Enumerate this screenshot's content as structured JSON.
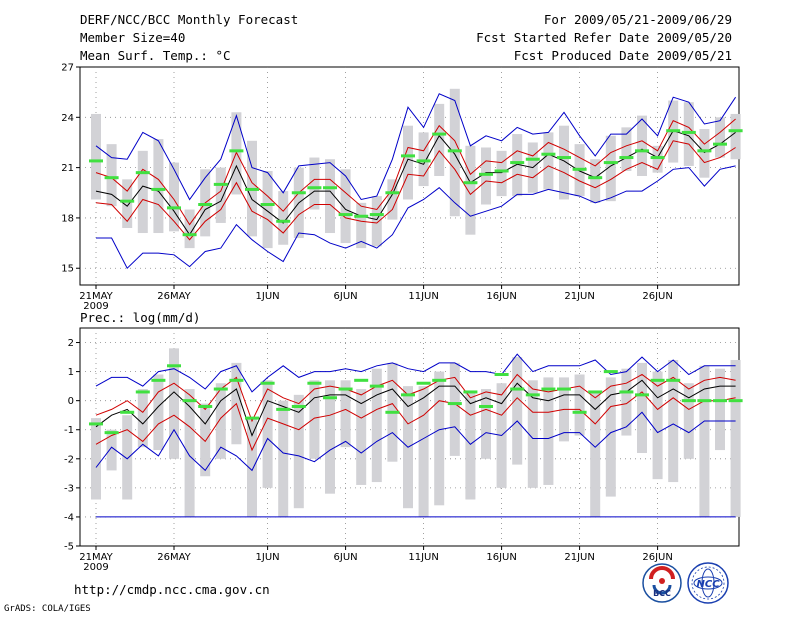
{
  "header": {
    "title": "DERF/NCC/BCC Monthly Forecast",
    "member_size": "Member Size=40",
    "variable": "Mean Surf. Temp.: °C",
    "period": "For 2009/05/21-2009/06/29",
    "started": "Fcst Started Refer Date 2009/05/20",
    "produced": "Fcst Produced Date 2009/05/21"
  },
  "footer": {
    "url": "http://cmdp.ncc.cma.gov.cn",
    "credit": "GrADS: COLA/IGES",
    "logo_left_text": "BCC",
    "logo_right_text": "NCC"
  },
  "colors": {
    "box": "#d2d2d6",
    "mean": "#000000",
    "band": "#d00000",
    "envelope": "#0000c8",
    "marker": "#40e040"
  },
  "chart_data": [
    {
      "type": "line",
      "title": "Mean Surf. Temp.: °C",
      "xlabel": "",
      "ylabel": "°C",
      "ylim": [
        14,
        27
      ],
      "yticks": [
        15,
        18,
        21,
        24,
        27
      ],
      "xticks": [
        {
          "day": 0,
          "label": "21MAY"
        },
        {
          "day": 5,
          "label": "26MAY"
        },
        {
          "day": 11,
          "label": "1JUN"
        },
        {
          "day": 16,
          "label": "6JUN"
        },
        {
          "day": 21,
          "label": "11JUN"
        },
        {
          "day": 26,
          "label": "16JUN"
        },
        {
          "day": 31,
          "label": "21JUN"
        },
        {
          "day": 36,
          "label": "26JUN"
        }
      ],
      "year_label": "2009",
      "series": [
        {
          "name": "max",
          "values": [
            22.3,
            21.6,
            21.5,
            23.1,
            22.6,
            20.9,
            19.1,
            20.4,
            21.5,
            24.1,
            21.0,
            20.7,
            19.5,
            21.1,
            21.2,
            21.3,
            20.5,
            19.1,
            19.3,
            21.5,
            24.6,
            23.4,
            25.4,
            25.0,
            22.3,
            22.9,
            22.6,
            23.4,
            23.0,
            23.1,
            24.3,
            22.9,
            21.7,
            23.0,
            23.0,
            23.9,
            22.9,
            25.2,
            24.9,
            23.6,
            23.8,
            25.2
          ]
        },
        {
          "name": "upper",
          "values": [
            20.7,
            20.4,
            19.6,
            20.9,
            20.3,
            19.1,
            17.6,
            18.9,
            19.6,
            21.9,
            20.1,
            19.3,
            18.4,
            19.5,
            20.3,
            20.3,
            19.5,
            18.7,
            18.5,
            19.7,
            22.2,
            22.0,
            23.5,
            22.6,
            20.6,
            21.4,
            21.3,
            22.0,
            21.7,
            22.5,
            22.1,
            21.6,
            21.1,
            21.9,
            22.3,
            22.6,
            22.0,
            23.8,
            23.4,
            22.4,
            23.1,
            23.9
          ]
        },
        {
          "name": "mean",
          "values": [
            19.6,
            19.4,
            18.7,
            19.9,
            19.6,
            18.4,
            17.0,
            18.5,
            19.0,
            21.1,
            19.1,
            18.4,
            17.7,
            18.9,
            19.6,
            19.6,
            18.5,
            18.1,
            17.9,
            19.4,
            21.5,
            21.2,
            22.9,
            21.8,
            20.1,
            20.7,
            20.7,
            21.2,
            21.0,
            21.8,
            21.4,
            20.8,
            20.4,
            21.1,
            21.6,
            22.1,
            21.6,
            23.2,
            22.9,
            21.9,
            22.4,
            23.1
          ]
        },
        {
          "name": "lower",
          "values": [
            18.9,
            18.8,
            17.8,
            19.1,
            18.8,
            17.8,
            16.7,
            17.8,
            18.5,
            20.1,
            18.4,
            17.9,
            17.1,
            18.2,
            18.8,
            18.8,
            18.0,
            17.8,
            17.7,
            18.5,
            20.6,
            20.5,
            22.0,
            20.9,
            19.4,
            20.2,
            20.1,
            20.6,
            20.4,
            21.1,
            20.7,
            20.2,
            19.8,
            20.3,
            20.9,
            21.3,
            20.9,
            22.6,
            22.4,
            21.3,
            21.6,
            22.2
          ]
        },
        {
          "name": "min",
          "values": [
            16.8,
            16.8,
            15.0,
            15.9,
            15.9,
            15.8,
            15.1,
            16.0,
            16.2,
            17.6,
            16.7,
            16.0,
            15.4,
            17.1,
            17.0,
            16.5,
            16.2,
            16.6,
            16.2,
            17.0,
            18.6,
            19.1,
            19.8,
            18.9,
            18.1,
            18.4,
            18.7,
            19.4,
            19.4,
            19.7,
            19.5,
            19.3,
            18.9,
            19.2,
            19.6,
            19.6,
            20.2,
            20.9,
            21.0,
            19.9,
            20.9,
            21.1
          ]
        },
        {
          "name": "box_top",
          "values": [
            24.2,
            22.4,
            20.3,
            22.0,
            22.7,
            21.3,
            18.5,
            20.9,
            21.0,
            24.3,
            22.6,
            20.8,
            19.6,
            21.0,
            21.6,
            21.5,
            20.9,
            18.9,
            19.3,
            20.3,
            23.5,
            23.1,
            24.8,
            25.7,
            22.3,
            22.2,
            22.0,
            23.0,
            22.5,
            23.1,
            23.5,
            22.4,
            21.5,
            22.9,
            23.4,
            24.1,
            22.3,
            25.0,
            24.9,
            23.3,
            24.0,
            24.2
          ]
        },
        {
          "name": "box_bottom",
          "values": [
            19.1,
            18.7,
            17.4,
            17.1,
            17.1,
            17.2,
            16.2,
            16.9,
            17.7,
            19.4,
            16.9,
            16.2,
            16.4,
            16.8,
            18.5,
            17.1,
            16.5,
            16.2,
            16.3,
            17.9,
            19.1,
            19.9,
            20.5,
            18.1,
            17.0,
            18.8,
            19.3,
            19.3,
            19.5,
            19.7,
            19.1,
            19.3,
            18.9,
            19.0,
            20.8,
            20.5,
            20.7,
            21.3,
            21.1,
            20.4,
            21.6,
            21.5
          ]
        },
        {
          "name": "marker",
          "values": [
            21.4,
            20.4,
            19.0,
            20.7,
            19.7,
            18.6,
            17.0,
            18.8,
            20.0,
            22.0,
            19.7,
            18.8,
            17.8,
            19.5,
            19.8,
            19.8,
            18.2,
            18.1,
            18.2,
            19.5,
            21.7,
            21.4,
            23.0,
            22.0,
            20.1,
            20.6,
            20.8,
            21.3,
            21.5,
            21.8,
            21.6,
            20.9,
            20.4,
            21.3,
            21.6,
            22.0,
            21.6,
            23.2,
            23.1,
            22.0,
            22.4,
            23.2
          ]
        }
      ]
    },
    {
      "type": "line",
      "title": "Prec.: log(mm/d)",
      "xlabel": "",
      "ylabel": "log(mm/d)",
      "ylim": [
        -5,
        2.5
      ],
      "yticks": [
        -5,
        -4,
        -3,
        -2,
        -1,
        0,
        1,
        2
      ],
      "xticks": [
        {
          "day": 0,
          "label": "21MAY"
        },
        {
          "day": 5,
          "label": "26MAY"
        },
        {
          "day": 11,
          "label": "1JUN"
        },
        {
          "day": 16,
          "label": "6JUN"
        },
        {
          "day": 21,
          "label": "11JUN"
        },
        {
          "day": 26,
          "label": "16JUN"
        },
        {
          "day": 31,
          "label": "21JUN"
        },
        {
          "day": 36,
          "label": "26JUN"
        }
      ],
      "year_label": "2009",
      "series": [
        {
          "name": "max",
          "values": [
            0.5,
            0.8,
            0.8,
            0.5,
            1.0,
            1.1,
            0.8,
            0.4,
            1.0,
            1.2,
            0.3,
            0.8,
            1.2,
            0.8,
            1.0,
            1.0,
            1.1,
            1.0,
            1.2,
            1.3,
            1.1,
            1.0,
            1.3,
            1.3,
            1.0,
            1.0,
            0.9,
            1.6,
            1.0,
            1.2,
            1.2,
            1.2,
            1.4,
            0.9,
            1.0,
            1.5,
            1.0,
            1.4,
            0.9,
            1.2,
            1.2,
            1.2
          ]
        },
        {
          "name": "upper",
          "values": [
            -0.5,
            -0.3,
            0.0,
            -0.4,
            0.3,
            0.6,
            0.2,
            -0.3,
            0.4,
            0.8,
            -0.7,
            0.4,
            0.1,
            -0.1,
            0.4,
            0.5,
            0.4,
            0.2,
            0.5,
            0.7,
            0.2,
            0.4,
            0.7,
            0.8,
            0.1,
            0.3,
            0.2,
            0.9,
            0.4,
            0.3,
            0.4,
            0.5,
            0.1,
            0.5,
            0.6,
            0.9,
            0.5,
            0.8,
            0.4,
            0.7,
            0.8,
            0.7
          ]
        },
        {
          "name": "mean",
          "values": [
            -0.9,
            -0.5,
            -0.3,
            -0.8,
            -0.2,
            0.3,
            -0.2,
            -0.8,
            0.0,
            0.4,
            -1.2,
            0.0,
            -0.2,
            -0.4,
            0.1,
            0.2,
            0.2,
            -0.1,
            0.2,
            0.4,
            -0.2,
            0.1,
            0.5,
            0.5,
            -0.1,
            0.1,
            -0.1,
            0.6,
            0.1,
            0.0,
            0.2,
            0.2,
            -0.3,
            0.2,
            0.3,
            0.7,
            0.1,
            0.4,
            0.1,
            0.4,
            0.5,
            0.5
          ]
        },
        {
          "name": "lower",
          "values": [
            -1.5,
            -1.2,
            -1.0,
            -1.4,
            -0.8,
            -0.5,
            -0.9,
            -1.4,
            -0.6,
            -0.1,
            -1.7,
            -0.6,
            -0.8,
            -1.0,
            -0.6,
            -0.5,
            -0.3,
            -0.6,
            -0.3,
            -0.1,
            -0.8,
            -0.5,
            0.0,
            -0.1,
            -0.5,
            -0.3,
            -0.5,
            0.1,
            -0.4,
            -0.4,
            -0.3,
            -0.3,
            -0.8,
            -0.2,
            -0.1,
            0.3,
            -0.3,
            0.1,
            -0.3,
            0.0,
            0.0,
            0.1
          ]
        },
        {
          "name": "min",
          "values": [
            -2.3,
            -1.6,
            -2.0,
            -1.5,
            -1.9,
            -1.0,
            -1.9,
            -2.4,
            -1.6,
            -1.9,
            -2.4,
            -1.3,
            -1.8,
            -1.9,
            -2.1,
            -1.7,
            -1.4,
            -1.8,
            -1.4,
            -1.1,
            -1.6,
            -1.3,
            -1.0,
            -0.9,
            -1.5,
            -1.1,
            -1.2,
            -0.7,
            -1.3,
            -1.3,
            -1.1,
            -1.1,
            -1.6,
            -1.1,
            -0.9,
            -0.4,
            -1.1,
            -0.8,
            -1.1,
            -0.7,
            -0.7,
            -0.7
          ]
        },
        {
          "name": "floor",
          "values": [
            -4.0,
            -4.0,
            -4.0,
            -4.0,
            -4.0,
            -4.0,
            -4.0,
            -4.0,
            -4.0,
            -4.0,
            -4.0,
            -4.0,
            -4.0,
            -4.0,
            -4.0,
            -4.0,
            -4.0,
            -4.0,
            -4.0,
            -4.0,
            -4.0,
            -4.0,
            -4.0,
            -4.0,
            -4.0,
            -4.0,
            -4.0,
            -4.0,
            -4.0,
            -4.0,
            -4.0,
            -4.0,
            -4.0,
            -4.0,
            -4.0,
            -4.0,
            -4.0,
            -4.0,
            -4.0,
            -4.0,
            -4.0,
            -4.0
          ]
        },
        {
          "name": "box_top",
          "values": [
            -0.6,
            -1.0,
            -0.5,
            0.4,
            0.9,
            1.8,
            0.4,
            -0.1,
            0.6,
            1.3,
            -0.6,
            0.7,
            0.0,
            0.2,
            0.7,
            0.7,
            0.7,
            0.4,
            1.1,
            1.3,
            0.5,
            0.5,
            1.0,
            1.3,
            0.3,
            0.4,
            0.6,
            1.5,
            0.7,
            0.8,
            0.8,
            0.9,
            0.3,
            0.8,
            1.1,
            1.3,
            1.0,
            1.4,
            0.6,
            1.2,
            1.1,
            1.4
          ]
        },
        {
          "name": "box_bottom",
          "values": [
            -3.4,
            -2.4,
            -3.4,
            -1.6,
            -1.7,
            -2.0,
            -4.0,
            -2.6,
            -2.0,
            -1.5,
            -4.0,
            -3.0,
            -4.0,
            -3.7,
            -2.0,
            -3.2,
            -1.6,
            -2.9,
            -2.8,
            -2.1,
            -3.7,
            -4.0,
            -3.6,
            -1.9,
            -3.4,
            -2.0,
            -3.0,
            -2.2,
            -3.0,
            -2.9,
            -1.4,
            -1.2,
            -4.0,
            -3.3,
            -1.2,
            -1.8,
            -2.7,
            -2.8,
            -2.0,
            -4.0,
            -1.7,
            -4.0
          ]
        },
        {
          "name": "marker",
          "values": [
            -0.8,
            -1.1,
            -0.4,
            0.3,
            0.7,
            1.2,
            -0.0,
            -0.2,
            0.4,
            0.7,
            -0.6,
            0.6,
            -0.3,
            -0.2,
            0.6,
            0.1,
            0.4,
            0.7,
            0.5,
            -0.4,
            0.2,
            0.6,
            0.7,
            -0.1,
            0.3,
            -0.2,
            0.9,
            0.4,
            0.2,
            0.4,
            0.4,
            -0.4,
            0.3,
            1.0,
            0.3,
            0.2,
            0.7,
            0.7,
            0.0,
            0.0,
            0.0,
            0.0
          ]
        }
      ]
    }
  ]
}
